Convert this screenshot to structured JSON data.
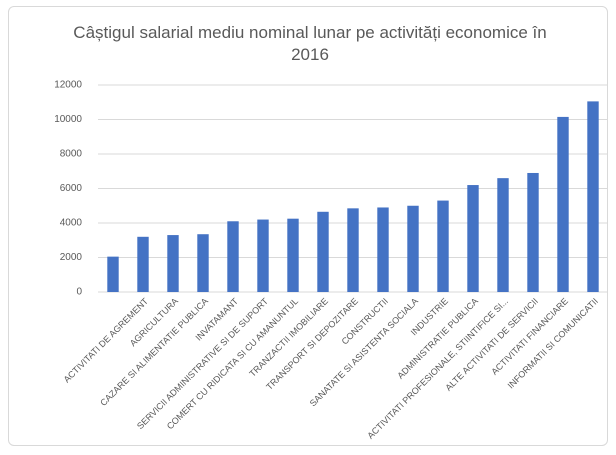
{
  "chart_data": {
    "type": "bar",
    "title": "Câștigul salarial mediu nominal lunar pe activități economice în 2016",
    "categories": [
      null,
      "ACTIVITATI DE AGREMENT",
      "AGRICULTURA",
      "CAZARE SI ALIMENTATIE PUBLICA",
      "INVATAMANT",
      "SERVICII ADMINISTRATIVE SI DE SUPORT",
      "COMERT CU RIDICATA SI CU AMANUNTUL",
      "TRANZACTII IMOBILIARE",
      "TRANSPORT SI DEPOZITARE",
      "CONSTRUCTII",
      "SANATATE SI ASISTENTA SOCIALA",
      "INDUSTRIE",
      "ADMINISTRATIE PUBLICA",
      "ACTIVITATI PROFESIONALE, STIINTIFICE SI...",
      "ALTE ACTIVITATI DE SERVICII",
      "ACTIVITATI FINANCIARE",
      "INFORMATII SI COMUNICATII"
    ],
    "values": [
      2050,
      3200,
      3300,
      3350,
      4100,
      4200,
      4250,
      4650,
      4850,
      4900,
      5000,
      5300,
      6200,
      6600,
      6900,
      10150,
      11050
    ],
    "color": "#4472c4",
    "ylim": [
      0,
      12000
    ],
    "yticks": [
      0,
      2000,
      4000,
      6000,
      8000,
      10000,
      12000
    ],
    "grid": true
  }
}
